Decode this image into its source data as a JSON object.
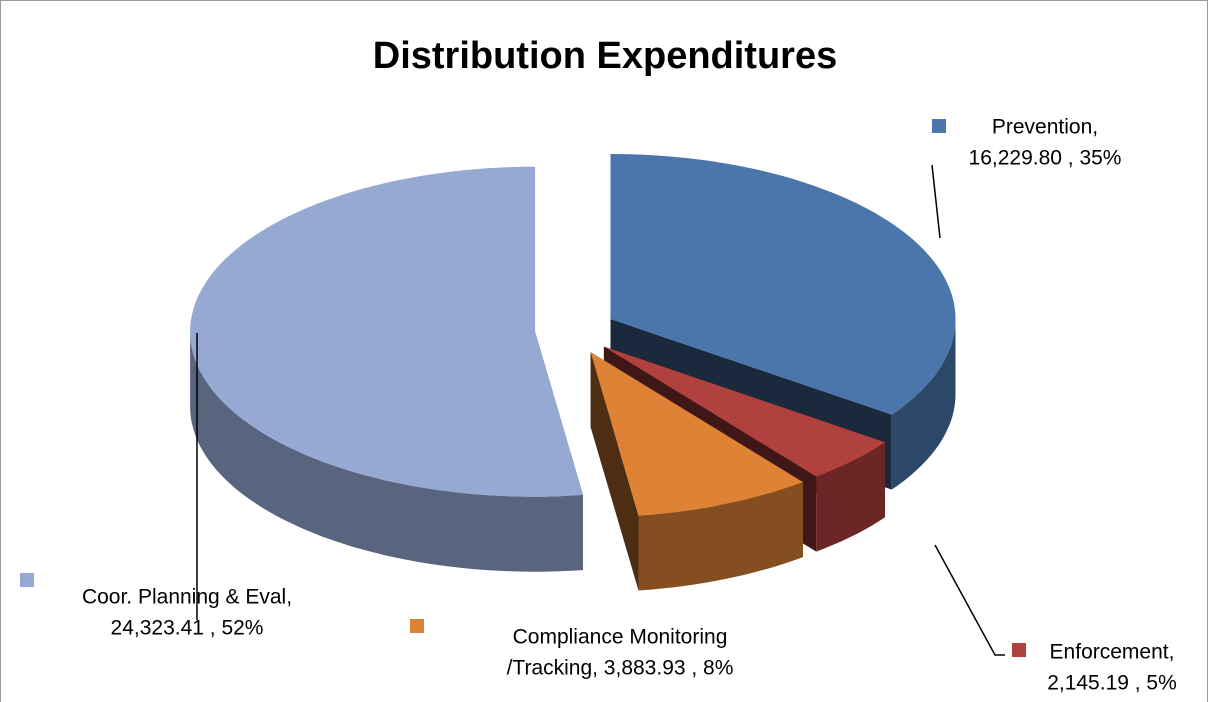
{
  "chart_data": {
    "type": "pie3d",
    "title": "Distribution Expenditures",
    "series": [
      {
        "name": "Prevention",
        "color": "#4a76ab",
        "value": 16229.8,
        "label_lines": [
          "Prevention,",
          "16,229.80 , 35%"
        ]
      },
      {
        "name": "Enforcement",
        "color": "#b0413e",
        "value": 2145.19,
        "label_lines": [
          "Enforcement,",
          "2,145.19 , 5%"
        ]
      },
      {
        "name": "Compliance Monitoring /Tracking",
        "color": "#de8235",
        "value": 3883.93,
        "label_lines": [
          "Compliance Monitoring",
          "/Tracking, 3,883.93 , 8%"
        ]
      },
      {
        "name": "Coor. Planning & Eval",
        "color": "#95a9d3",
        "value": 24323.41,
        "label_lines": [
          "Coor. Planning & Eval,",
          "24,323.41 , 52%"
        ]
      }
    ]
  }
}
